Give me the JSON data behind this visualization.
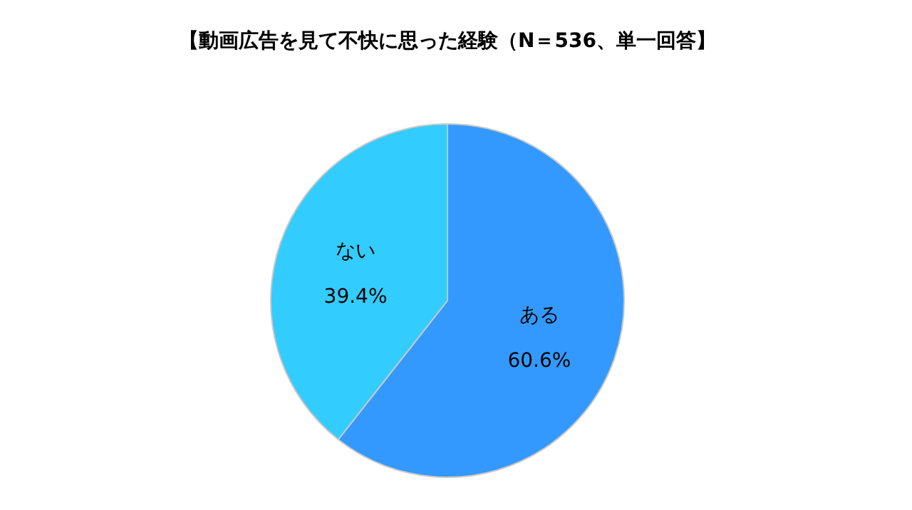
{
  "chart_data": {
    "type": "pie",
    "title": "【動画広告を見て不快に思った経験（N＝536、単一回答】",
    "categories": [
      "ある",
      "ない"
    ],
    "values": [
      60.6,
      39.4
    ],
    "value_labels": [
      "60.6%",
      "39.4%"
    ],
    "colors": [
      "#3399ff",
      "#33ccff"
    ],
    "data_labels": true
  }
}
